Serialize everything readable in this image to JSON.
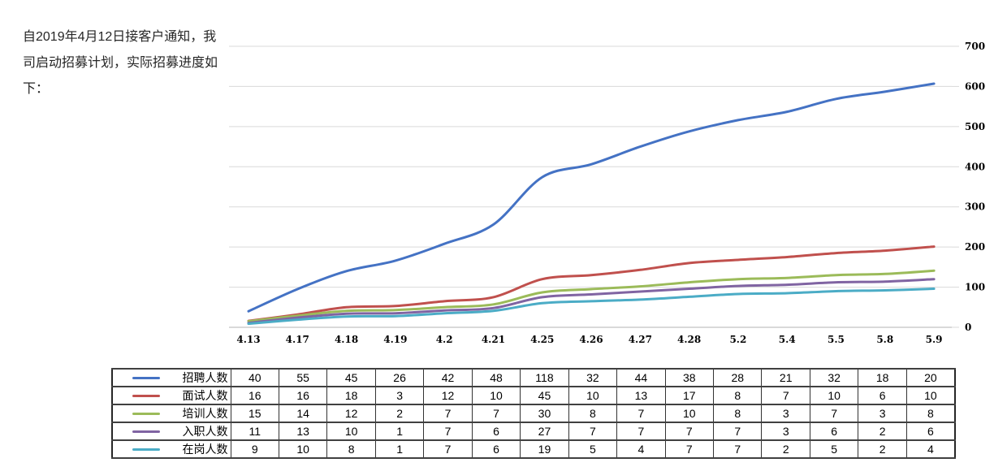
{
  "intro": {
    "text": "自2019年4月12日接客户通知，我司启动招募计划，实际招募进度如下："
  },
  "chart_data": {
    "type": "line",
    "title": "",
    "xlabel": "",
    "ylabel": "",
    "line_style": "smooth",
    "grid": true,
    "legend_position": "table-left-column",
    "y_axis": {
      "position": "right",
      "min": 0,
      "max": 700,
      "ticks": [
        0,
        100,
        200,
        300,
        400,
        500,
        600,
        700
      ]
    },
    "categories": [
      "4.13",
      "4.17",
      "4.18",
      "4.19",
      "4.2",
      "4.21",
      "4.25",
      "4.26",
      "4.27",
      "4.28",
      "5.2",
      "5.4",
      "5.5",
      "5.8",
      "5.9"
    ],
    "series": [
      {
        "name": "招聘人数",
        "color": "#4472C4",
        "values": [
          40,
          55,
          45,
          26,
          42,
          48,
          118,
          32,
          44,
          38,
          28,
          21,
          32,
          18,
          20
        ],
        "plotted_cumulative": [
          40,
          95,
          140,
          166,
          208,
          256,
          374,
          406,
          450,
          488,
          516,
          537,
          569,
          587,
          607
        ]
      },
      {
        "name": "面试人数",
        "color": "#C0504D",
        "values": [
          16,
          16,
          18,
          3,
          12,
          10,
          45,
          10,
          13,
          17,
          8,
          7,
          10,
          6,
          10
        ],
        "plotted_cumulative": [
          16,
          32,
          50,
          53,
          65,
          75,
          120,
          130,
          143,
          160,
          168,
          175,
          185,
          191,
          201
        ]
      },
      {
        "name": "培训人数",
        "color": "#9BBB59",
        "values": [
          15,
          14,
          12,
          2,
          7,
          7,
          30,
          8,
          7,
          10,
          8,
          3,
          7,
          3,
          8
        ],
        "plotted_cumulative": [
          15,
          29,
          41,
          43,
          50,
          57,
          87,
          95,
          102,
          112,
          120,
          123,
          130,
          133,
          141
        ]
      },
      {
        "name": "入职人数",
        "color": "#8064A2",
        "values": [
          11,
          13,
          10,
          1,
          7,
          6,
          27,
          7,
          7,
          7,
          7,
          3,
          6,
          2,
          6
        ],
        "plotted_cumulative": [
          11,
          24,
          34,
          35,
          42,
          48,
          75,
          82,
          89,
          96,
          103,
          106,
          112,
          114,
          120
        ]
      },
      {
        "name": "在岗人数",
        "color": "#4BACC6",
        "values": [
          9,
          10,
          8,
          1,
          7,
          6,
          19,
          5,
          4,
          7,
          7,
          2,
          5,
          2,
          4
        ],
        "plotted_cumulative": [
          9,
          19,
          27,
          28,
          35,
          41,
          60,
          65,
          69,
          76,
          83,
          85,
          90,
          92,
          96
        ]
      }
    ],
    "colors": {
      "gridline": "#D9D9D9",
      "axis_line": "#D9D9D9",
      "axis_text": "#000000",
      "table_border": "#404040"
    }
  }
}
